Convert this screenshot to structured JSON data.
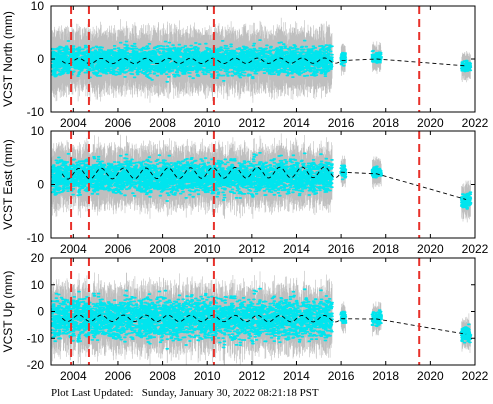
{
  "footer": {
    "label": "Plot Last Updated:",
    "timestamp": "Sunday, January 30, 2022 08:21:18 PST"
  },
  "colors": {
    "points": "#00e5ee",
    "errorbars": "#a9a9a9",
    "model": "#000000",
    "events": "#e8302a",
    "axes": "#000000"
  },
  "chart_data": [
    {
      "type": "scatter",
      "ylabel": "VCST North (mm)",
      "xlim": [
        2003.0,
        2022.0
      ],
      "ylim": [
        -10,
        10
      ],
      "yticks": [
        -10,
        0,
        10
      ],
      "xticks": [
        2004,
        2006,
        2008,
        2010,
        2012,
        2014,
        2016,
        2018,
        2020,
        2022
      ],
      "event_lines": [
        2003.9,
        2004.7,
        2010.3,
        2019.5
      ],
      "series": [
        {
          "role": "observations",
          "segments": [
            {
              "x": [
                2003.05,
                2015.6
              ],
              "center": -0.3,
              "spread": 2.8,
              "error": 4.5
            },
            {
              "x": [
                2016.0,
                2016.2
              ],
              "center": 0.1,
              "spread": 1.2,
              "error": 2.0
            },
            {
              "x": [
                2017.4,
                2017.8
              ],
              "center": 0.3,
              "spread": 1.0,
              "error": 2.0
            },
            {
              "x": [
                2021.4,
                2021.8
              ],
              "center": -1.3,
              "spread": 1.0,
              "error": 2.0
            }
          ]
        },
        {
          "role": "model",
          "x": [
            2003.5,
            2016.0,
            2017.6,
            2021.6
          ],
          "y": [
            -0.4,
            -0.3,
            0.0,
            -1.3
          ],
          "seasonal_amplitude": 0.5
        }
      ]
    },
    {
      "type": "scatter",
      "ylabel": "VCST East (mm)",
      "xlim": [
        2003.0,
        2022.0
      ],
      "ylim": [
        -10,
        10
      ],
      "yticks": [
        -10,
        0,
        10
      ],
      "xticks": [
        2004,
        2006,
        2008,
        2010,
        2012,
        2014,
        2016,
        2018,
        2020,
        2022
      ],
      "event_lines": [
        2003.9,
        2004.7,
        2010.3,
        2019.5
      ],
      "series": [
        {
          "role": "observations",
          "segments": [
            {
              "x": [
                2003.05,
                2015.6
              ],
              "center": 1.5,
              "spread": 3.2,
              "error": 4.0
            },
            {
              "x": [
                2016.0,
                2016.2
              ],
              "center": 2.5,
              "spread": 1.2,
              "error": 2.0
            },
            {
              "x": [
                2017.4,
                2017.8
              ],
              "center": 2.2,
              "spread": 1.0,
              "error": 2.0
            },
            {
              "x": [
                2021.4,
                2021.8
              ],
              "center": -3.0,
              "spread": 1.5,
              "error": 2.5
            }
          ]
        },
        {
          "role": "model",
          "x": [
            2003.5,
            2016.0,
            2017.6,
            2021.6
          ],
          "y": [
            2.0,
            2.3,
            2.0,
            -2.8
          ],
          "seasonal_amplitude": 1.0
        }
      ]
    },
    {
      "type": "scatter",
      "ylabel": "VCST Up (mm)",
      "xlim": [
        2003.0,
        2022.0
      ],
      "ylim": [
        -20,
        20
      ],
      "yticks": [
        -20,
        -10,
        0,
        10,
        20
      ],
      "xticks": [
        2004,
        2006,
        2008,
        2010,
        2012,
        2014,
        2016,
        2018,
        2020,
        2022
      ],
      "event_lines": [
        2003.9,
        2004.7,
        2010.3,
        2019.5
      ],
      "series": [
        {
          "role": "observations",
          "segments": [
            {
              "x": [
                2003.05,
                2015.6
              ],
              "center": -2.5,
              "spread": 8.0,
              "error": 8.0
            },
            {
              "x": [
                2016.0,
                2016.2
              ],
              "center": -2.5,
              "spread": 2.5,
              "error": 4.0
            },
            {
              "x": [
                2017.4,
                2017.8
              ],
              "center": -2.5,
              "spread": 2.5,
              "error": 4.0
            },
            {
              "x": [
                2021.4,
                2021.8
              ],
              "center": -8.5,
              "spread": 3.0,
              "error": 4.0
            }
          ]
        },
        {
          "role": "model",
          "x": [
            2003.5,
            2016.0,
            2017.6,
            2021.6
          ],
          "y": [
            -2.5,
            -2.7,
            -2.8,
            -8.5
          ],
          "seasonal_amplitude": 1.2
        }
      ]
    }
  ]
}
